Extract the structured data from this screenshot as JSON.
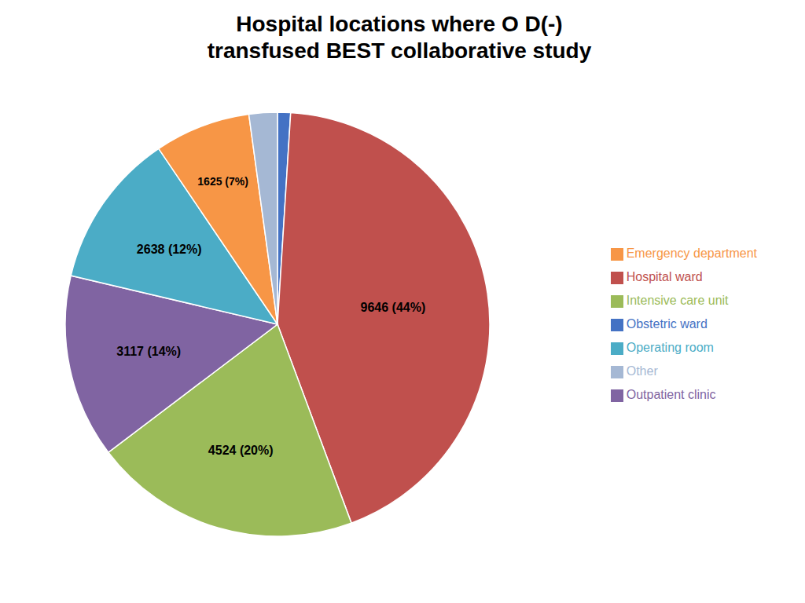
{
  "chart_data": {
    "type": "pie",
    "title": "Hospital locations where O D(-)\ntransfused BEST collaborative study",
    "categories": [
      "Obstetric ward",
      "Hospital ward",
      "Intensive care unit",
      "Outpatient clinic",
      "Operating room",
      "Emergency department",
      "Other"
    ],
    "values": [
      220,
      9646,
      4524,
      3117,
      2638,
      1625,
      480
    ],
    "colors": [
      "#4472C4",
      "#C0504D",
      "#9BBB59",
      "#8064A2",
      "#4BACC6",
      "#F79646",
      "#A5B8D4"
    ],
    "data_labels": true,
    "value_labels": [
      null,
      "9646 (44%)",
      "4524 (20%)",
      "3117 (14%)",
      "2638 (12%)",
      "1625 (7%)",
      null
    ],
    "legend": "right"
  }
}
